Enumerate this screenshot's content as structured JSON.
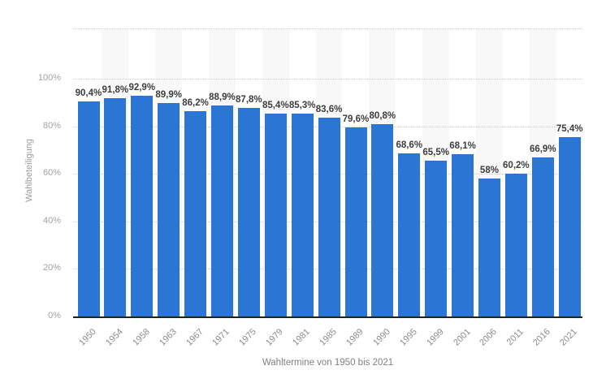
{
  "chart_data": {
    "type": "bar",
    "title": "",
    "xlabel": "Wahltermine von 1950 bis 2021",
    "ylabel": "Wahlbeteiligung",
    "categories": [
      "1950",
      "1954",
      "1958",
      "1963",
      "1967",
      "1971",
      "1975",
      "1979",
      "1981",
      "1985",
      "1989",
      "1990",
      "1995",
      "1999",
      "2001",
      "2006",
      "2011",
      "2016",
      "2021"
    ],
    "values": [
      90.4,
      91.8,
      92.9,
      89.9,
      86.2,
      88.9,
      87.8,
      85.4,
      85.3,
      83.6,
      79.6,
      80.8,
      68.6,
      65.5,
      68.1,
      58,
      60.2,
      66.9,
      75.4
    ],
    "value_labels": [
      "90,4%",
      "91,8%",
      "92,9%",
      "89,9%",
      "86,2%",
      "88,9%",
      "87,8%",
      "85,4%",
      "85,3%",
      "83,6%",
      "79,6%",
      "80,8%",
      "68,6%",
      "65,5%",
      "68,1%",
      "58%",
      "60,2%",
      "66,9%",
      "75,4%"
    ],
    "ytick_values": [
      0,
      20,
      40,
      60,
      80,
      100
    ],
    "ytick_labels": [
      "0%",
      "20%",
      "40%",
      "60%",
      "80%",
      "100%"
    ],
    "ylim": [
      0,
      121
    ],
    "grid": "horizontal-dotted",
    "legend_position": "none",
    "colors": {
      "bar": "#2b76d4",
      "stripe": "#f8f8f8",
      "grid": "#cccccc",
      "axis_line": "#222222",
      "y_tick_text": "#a2a2a2",
      "x_tick_text": "#8c8c8c",
      "value_label_text": "#3d3d3d",
      "axis_title_text": "#808080",
      "background": "#ffffff"
    }
  }
}
